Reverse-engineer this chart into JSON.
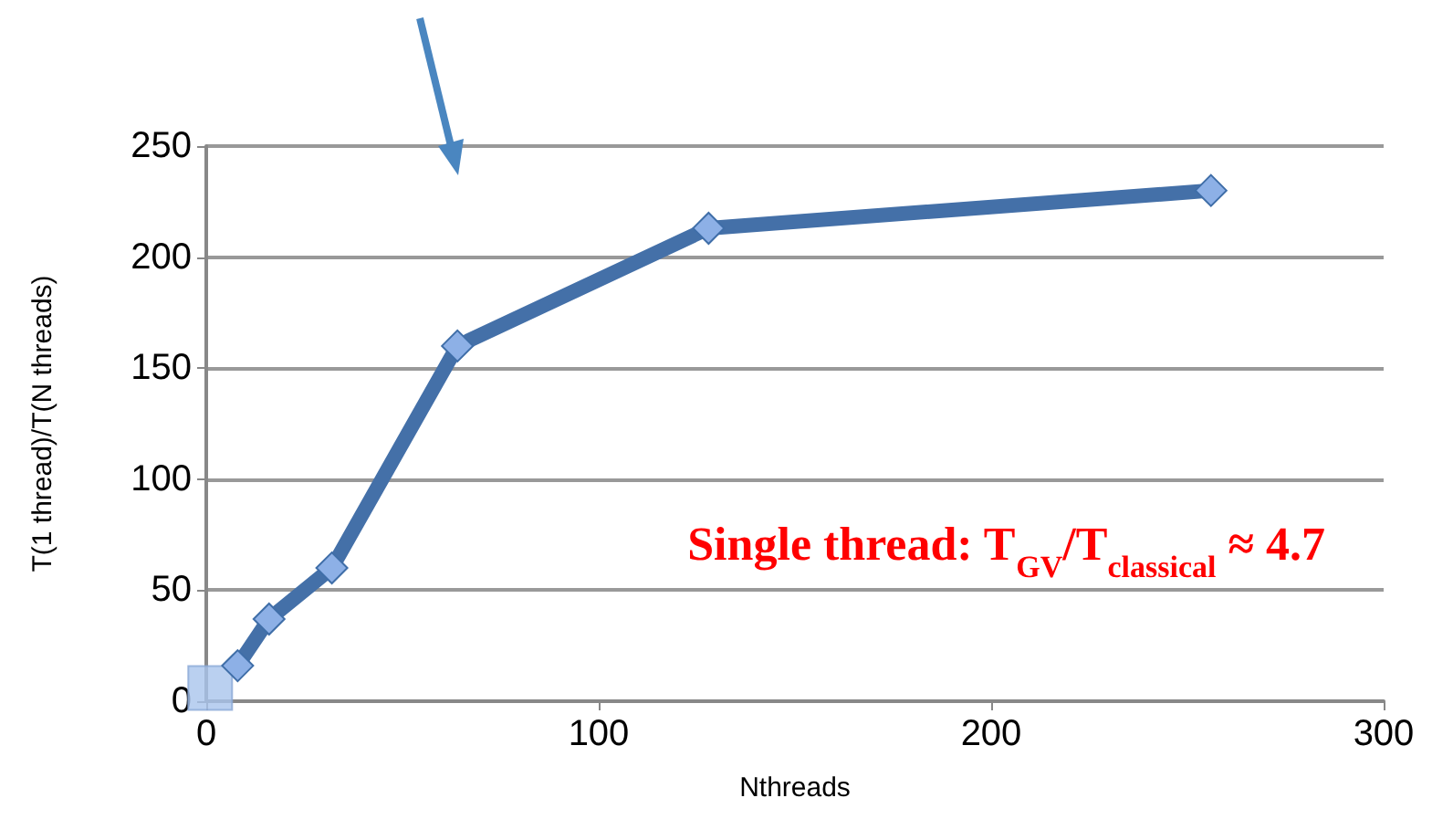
{
  "chart_data": {
    "type": "line",
    "xlabel": "Nthreads",
    "ylabel": "T(1 thread)/T(N threads)",
    "annotations": [
      "Single thread: T$_{GV}$/T$_{classical}$ ≈ 4.7"
    ],
    "series": [
      {
        "color": "#4470a8",
        "marker": "diamond",
        "x": [
          8,
          16,
          32,
          64,
          128,
          256
        ],
        "values": [
          16,
          37,
          60,
          160,
          213,
          230
        ]
      },
      {
        "type": "scatter",
        "color": "#a9c4ec",
        "marker": "square",
        "x": [
          1
        ],
        "values": [
          6
        ]
      }
    ],
    "xlim": [
      0,
      300
    ],
    "xticks": [
      0,
      100,
      200,
      300
    ],
    "ylim": [
      0,
      250
    ],
    "yticks": [
      0,
      50,
      100,
      150,
      200,
      250
    ],
    "grid": "y"
  }
}
